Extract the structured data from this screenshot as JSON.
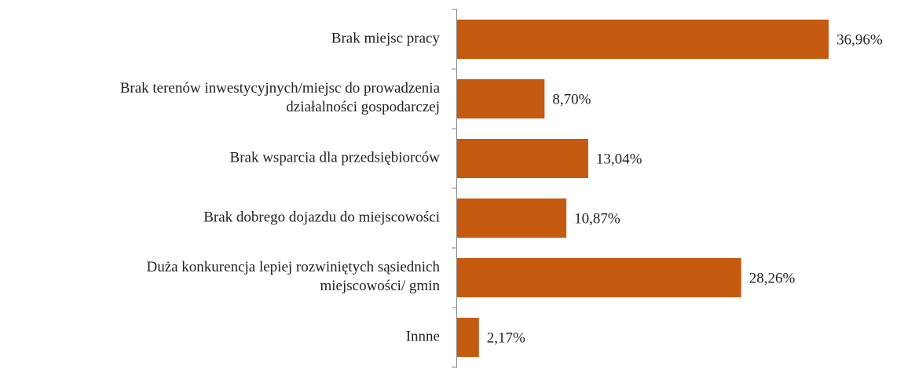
{
  "chart_data": {
    "type": "bar",
    "orientation": "horizontal",
    "categories": [
      "Brak miejsc pracy",
      "Brak terenów inwestycyjnych/miejsc do prowadzenia\ndziałalności gospodarczej",
      "Brak wsparcia dla przedsiębiorców",
      "Brak dobrego dojazdu do miejscowości",
      "Duża konkurencja lepiej rozwiniętych sąsiednich\nmiejscowości/ gmin",
      "Innne"
    ],
    "values": [
      36.96,
      8.7,
      13.04,
      10.87,
      28.26,
      2.17
    ],
    "value_labels": [
      "36,96%",
      "8,70%",
      "13,04%",
      "10,87%",
      "28,26%",
      "2,17%"
    ],
    "color": "#c55a11"
  }
}
